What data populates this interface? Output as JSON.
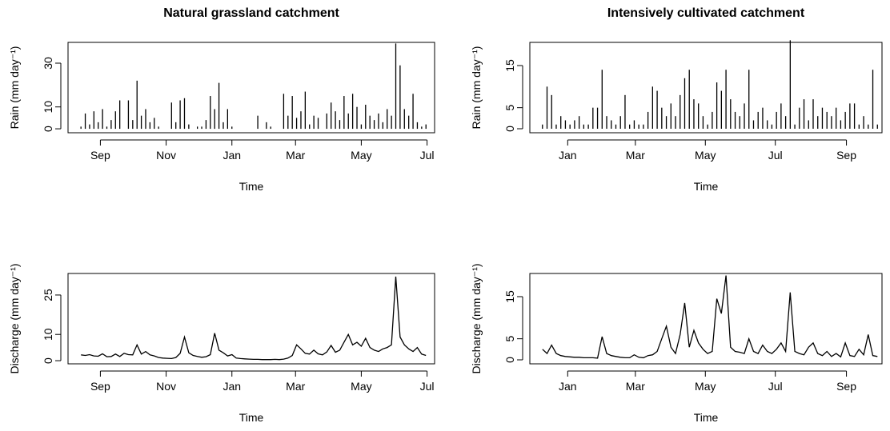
{
  "chart_data": [
    {
      "type": "bar",
      "title": "Natural grassland catchment",
      "xlabel": "Time",
      "ylabel": "Rain (mm day⁻¹)",
      "color": "#000000",
      "x": [
        -18,
        -14,
        -10,
        -6,
        -2,
        2,
        6,
        10,
        14,
        18,
        22,
        26,
        30,
        34,
        38,
        42,
        46,
        50,
        54,
        58,
        62,
        66,
        70,
        74,
        78,
        82,
        86,
        90,
        94,
        98,
        102,
        106,
        110,
        114,
        118,
        122,
        126,
        130,
        134,
        138,
        142,
        146,
        150,
        154,
        158,
        162,
        166,
        170,
        174,
        178,
        182,
        186,
        190,
        194,
        198,
        202,
        206,
        210,
        214,
        218,
        222,
        226,
        230,
        234,
        238,
        242,
        246,
        250,
        254,
        258,
        262,
        266,
        270,
        274,
        278,
        282,
        286,
        290,
        294,
        298,
        302
      ],
      "values": [
        1,
        7,
        2,
        8,
        3,
        9,
        1,
        4,
        8,
        13,
        0,
        13,
        4,
        22,
        6,
        9,
        3,
        5,
        1,
        0,
        0,
        12,
        3,
        13,
        14,
        2,
        0,
        1,
        1,
        4,
        15,
        9,
        21,
        3,
        9,
        1,
        0,
        0,
        0,
        0,
        0,
        6,
        0,
        3,
        1,
        0,
        0,
        16,
        6,
        15,
        5,
        8,
        17,
        2,
        6,
        5,
        0,
        7,
        12,
        8,
        4,
        15,
        7,
        16,
        10,
        2,
        11,
        6,
        4,
        7,
        3,
        9,
        6,
        39,
        29,
        9,
        6,
        16,
        3,
        1,
        2
      ],
      "xlim": [
        -30,
        310
      ],
      "xticks": [
        {
          "value": 0,
          "label": "Sep"
        },
        {
          "value": 61,
          "label": "Nov"
        },
        {
          "value": 122,
          "label": "Jan"
        },
        {
          "value": 181,
          "label": "Mar"
        },
        {
          "value": 242,
          "label": "May"
        },
        {
          "value": 303,
          "label": "Jul"
        }
      ],
      "ylim": [
        -1.8,
        39.5
      ],
      "yticks": [
        0,
        10,
        30
      ]
    },
    {
      "type": "bar",
      "title": "Intensively cultivated catchment",
      "xlabel": "Time",
      "ylabel": "Rain (mm day⁻¹)",
      "color": "#000000",
      "x": [
        -22,
        -18,
        -14,
        -10,
        -6,
        -2,
        2,
        6,
        10,
        14,
        18,
        22,
        26,
        30,
        34,
        38,
        42,
        46,
        50,
        54,
        58,
        62,
        66,
        70,
        74,
        78,
        82,
        86,
        90,
        94,
        98,
        102,
        106,
        110,
        114,
        118,
        122,
        126,
        130,
        134,
        138,
        142,
        146,
        150,
        154,
        158,
        162,
        166,
        170,
        174,
        178,
        182,
        186,
        190,
        194,
        198,
        202,
        206,
        210,
        214,
        218,
        222,
        226,
        230,
        234,
        238,
        242,
        246,
        250,
        254,
        258,
        262,
        266,
        270
      ],
      "values": [
        1,
        10,
        8,
        1,
        3,
        2,
        1,
        2,
        3,
        1,
        1,
        5,
        5,
        14,
        3,
        2,
        1,
        3,
        8,
        1,
        2,
        1,
        1,
        4,
        10,
        9,
        5,
        3,
        6,
        3,
        8,
        12,
        14,
        7,
        6,
        3,
        1,
        4,
        11,
        9,
        14,
        7,
        4,
        3,
        6,
        14,
        2,
        4,
        5,
        2,
        1,
        4,
        6,
        3,
        21,
        1,
        5,
        7,
        2,
        7,
        3,
        5,
        4,
        3,
        5,
        2,
        4,
        6,
        6,
        1,
        3,
        1,
        14,
        1
      ],
      "xlim": [
        -33,
        274
      ],
      "xticks": [
        {
          "value": 0,
          "label": "Jan"
        },
        {
          "value": 59,
          "label": "Mar"
        },
        {
          "value": 120,
          "label": "May"
        },
        {
          "value": 181,
          "label": "Jul"
        },
        {
          "value": 243,
          "label": "Sep"
        }
      ],
      "ylim": [
        -0.95,
        20.5
      ],
      "yticks": [
        0,
        5,
        15
      ]
    },
    {
      "type": "line",
      "xlabel": "Time",
      "ylabel": "Discharge (mm day⁻¹)",
      "color": "#000000",
      "x": [
        -18,
        -14,
        -10,
        -6,
        -2,
        2,
        6,
        10,
        14,
        18,
        22,
        26,
        30,
        34,
        38,
        42,
        46,
        50,
        54,
        58,
        62,
        66,
        70,
        74,
        78,
        82,
        86,
        90,
        94,
        98,
        102,
        106,
        110,
        114,
        118,
        122,
        126,
        130,
        134,
        138,
        142,
        146,
        150,
        154,
        158,
        162,
        166,
        170,
        174,
        178,
        182,
        186,
        190,
        194,
        198,
        202,
        206,
        210,
        214,
        218,
        222,
        226,
        230,
        234,
        238,
        242,
        246,
        250,
        254,
        258,
        262,
        266,
        270,
        274,
        278,
        282,
        286,
        290,
        294,
        298,
        302
      ],
      "values": [
        2.2,
        2,
        2.3,
        1.8,
        1.7,
        2.6,
        1.5,
        1.6,
        2.5,
        1.6,
        2.8,
        2.3,
        2.2,
        6,
        2.5,
        3.5,
        2.2,
        1.8,
        1.2,
        1,
        0.9,
        0.8,
        1.2,
        2.8,
        9,
        3,
        2,
        1.6,
        1.3,
        1.5,
        2.3,
        10.5,
        4,
        3,
        1.8,
        2.3,
        1,
        0.8,
        0.7,
        0.6,
        0.5,
        0.5,
        0.4,
        0.4,
        0.4,
        0.5,
        0.4,
        0.6,
        1,
        2,
        6,
        4.5,
        2.8,
        2.5,
        4,
        2.6,
        2.2,
        3.3,
        5.8,
        3.2,
        4,
        7,
        10,
        6,
        7,
        5.5,
        8.5,
        5,
        4,
        3.5,
        4.5,
        5,
        6,
        32,
        9,
        6,
        4.5,
        3.5,
        5,
        2.5,
        2
      ],
      "xlim": [
        -30,
        310
      ],
      "xticks": [
        {
          "value": 0,
          "label": "Sep"
        },
        {
          "value": 61,
          "label": "Nov"
        },
        {
          "value": 122,
          "label": "Jan"
        },
        {
          "value": 181,
          "label": "Mar"
        },
        {
          "value": 242,
          "label": "May"
        },
        {
          "value": 303,
          "label": "Jul"
        }
      ],
      "ylim": [
        -1.2,
        33.2
      ],
      "yticks": [
        0,
        10,
        25
      ]
    },
    {
      "type": "line",
      "xlabel": "Time",
      "ylabel": "Discharge (mm day⁻¹)",
      "color": "#000000",
      "x": [
        -22,
        -18,
        -14,
        -10,
        -6,
        -2,
        2,
        6,
        10,
        14,
        18,
        22,
        26,
        30,
        34,
        38,
        42,
        46,
        50,
        54,
        58,
        62,
        66,
        70,
        74,
        78,
        82,
        86,
        90,
        94,
        98,
        102,
        106,
        110,
        114,
        118,
        122,
        126,
        130,
        134,
        138,
        142,
        146,
        150,
        154,
        158,
        162,
        166,
        170,
        174,
        178,
        182,
        186,
        190,
        194,
        198,
        202,
        206,
        210,
        214,
        218,
        222,
        226,
        230,
        234,
        238,
        242,
        246,
        250,
        254,
        258,
        262,
        266,
        270
      ],
      "values": [
        2.5,
        1.5,
        3.5,
        1.5,
        1,
        0.8,
        0.7,
        0.6,
        0.6,
        0.5,
        0.5,
        0.5,
        0.4,
        5.5,
        1.5,
        1,
        0.8,
        0.6,
        0.5,
        0.5,
        1.2,
        0.6,
        0.5,
        1,
        1.2,
        2,
        5,
        8,
        3,
        1.5,
        6,
        13.5,
        3,
        7,
        4,
        2.5,
        1.5,
        2,
        14.5,
        11,
        20,
        3,
        2,
        1.8,
        1.5,
        5,
        2,
        1.5,
        3.5,
        2,
        1.5,
        2.5,
        4,
        2,
        16,
        2,
        1.5,
        1.2,
        3,
        4,
        1.5,
        1,
        2,
        0.8,
        1.5,
        0.7,
        4,
        1,
        0.8,
        2.5,
        1.2,
        6,
        1,
        0.8
      ],
      "xlim": [
        -33,
        274
      ],
      "xticks": [
        {
          "value": 0,
          "label": "Jan"
        },
        {
          "value": 59,
          "label": "Mar"
        },
        {
          "value": 120,
          "label": "May"
        },
        {
          "value": 181,
          "label": "Jul"
        },
        {
          "value": 243,
          "label": "Sep"
        }
      ],
      "ylim": [
        -0.95,
        20.5
      ],
      "yticks": [
        0,
        5,
        15
      ]
    }
  ]
}
